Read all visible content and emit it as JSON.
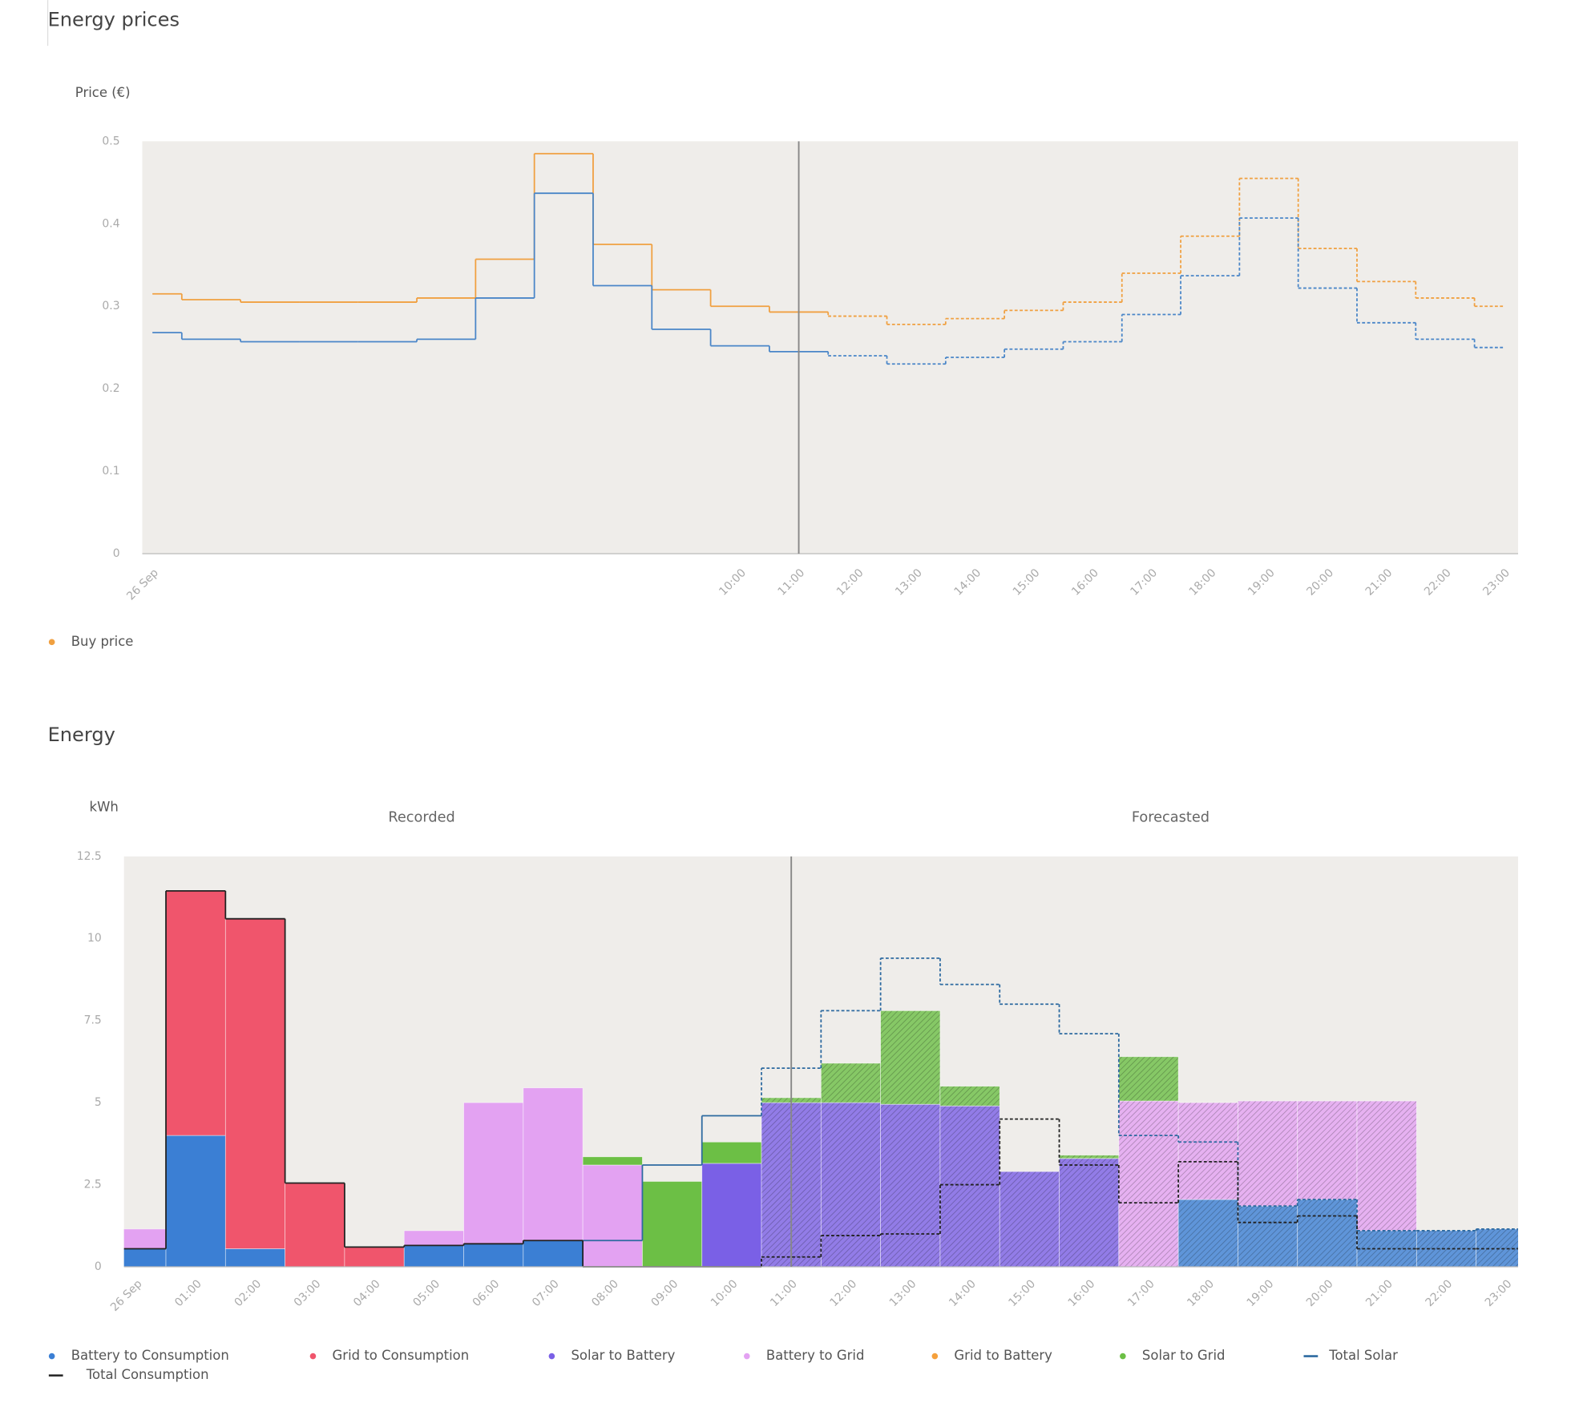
{
  "chart_data": [
    {
      "type": "line",
      "step": "mid",
      "title": "Energy prices",
      "y_label": "Price (€)",
      "categories": [
        "26 Sep",
        null,
        null,
        null,
        null,
        null,
        null,
        null,
        null,
        null,
        "10:00",
        "11:00",
        "12:00",
        "13:00",
        "14:00",
        "15:00",
        "16:00",
        "17:00",
        "18:00",
        "19:00",
        "20:00",
        "21:00",
        "22:00",
        "23:00"
      ],
      "divider": "11:00",
      "ylim": [
        0,
        0.5
      ],
      "yticks": [
        0,
        0.1,
        0.2,
        0.3,
        0.4,
        0.5
      ],
      "grid": false,
      "legend": "bottom-left",
      "series": [
        {
          "name": "Buy price",
          "color": "#f0a040",
          "values": [
            0.315,
            0.308,
            0.305,
            0.305,
            0.305,
            0.31,
            0.357,
            0.485,
            0.375,
            0.32,
            0.3,
            0.293,
            0.288,
            0.278,
            0.285,
            0.295,
            0.305,
            0.34,
            0.385,
            0.455,
            0.37,
            0.33,
            0.31,
            0.3
          ]
        },
        {
          "color": "#4a86c8",
          "values": [
            0.268,
            0.26,
            0.257,
            0.257,
            0.257,
            0.26,
            0.31,
            0.437,
            0.325,
            0.272,
            0.252,
            0.245,
            0.24,
            0.23,
            0.238,
            0.248,
            0.257,
            0.29,
            0.337,
            0.407,
            0.322,
            0.28,
            0.26,
            0.25
          ]
        }
      ]
    },
    {
      "type": "bar",
      "stacked": true,
      "step": "mid",
      "title": "Energy",
      "y_label": "kWh",
      "annotations": [
        "Recorded",
        "Forecasted"
      ],
      "categories": [
        "26 Sep",
        "01:00",
        "02:00",
        "03:00",
        "04:00",
        "05:00",
        "06:00",
        "07:00",
        "08:00",
        "09:00",
        "10:00",
        "11:00",
        "12:00",
        "13:00",
        "14:00",
        "15:00",
        "16:00",
        "17:00",
        "18:00",
        "19:00",
        "20:00",
        "21:00",
        "22:00",
        "23:00"
      ],
      "divider": "11:00",
      "ylim": [
        0,
        12.5
      ],
      "yticks": [
        0,
        2.5,
        5,
        7.5,
        10,
        12.5
      ],
      "grid": false,
      "legend": "bottom-left",
      "series": [
        {
          "name": "Battery to Consumption",
          "color": "#3b7fd4",
          "values": [
            0.55,
            4.0,
            0.55,
            0,
            0,
            0.65,
            0.7,
            0.8,
            0,
            0,
            0,
            0,
            0,
            0,
            0,
            0,
            0,
            0,
            2.05,
            1.85,
            2.05,
            1.1,
            1.1,
            1.15
          ]
        },
        {
          "name": "Grid to Consumption",
          "color": "#f0556c",
          "values": [
            0,
            7.45,
            10.05,
            2.55,
            0.6,
            0,
            0,
            0,
            0,
            0,
            0,
            0,
            0,
            0,
            0,
            0,
            0,
            0,
            0,
            0,
            0,
            0,
            0,
            0
          ]
        },
        {
          "name": "Solar to Battery",
          "color": "#7a60e6",
          "values": [
            0,
            0,
            0,
            0,
            0,
            0,
            0,
            0,
            0,
            0,
            3.15,
            5.0,
            5.0,
            4.95,
            4.9,
            2.9,
            3.3,
            0,
            0,
            0,
            0,
            0,
            0,
            0
          ]
        },
        {
          "name": "Battery to Grid",
          "color": "#e3a2f2",
          "values": [
            0.6,
            0,
            0,
            0,
            0,
            0.45,
            4.3,
            4.65,
            3.1,
            0,
            0,
            0,
            0,
            0,
            0,
            0,
            0,
            5.05,
            2.95,
            3.2,
            3.0,
            3.95,
            0,
            0
          ]
        },
        {
          "name": "Grid to Battery",
          "color": "#f5a03c",
          "values": [
            0,
            0,
            0,
            0,
            0,
            0,
            0,
            0,
            0,
            0,
            0,
            0,
            0,
            0,
            0,
            0,
            0,
            0,
            0,
            0,
            0,
            0,
            0,
            0
          ]
        },
        {
          "name": "Solar to Grid",
          "color": "#6cbf45",
          "values": [
            0,
            0,
            0,
            0,
            0,
            0,
            0,
            0,
            0.25,
            2.6,
            0.65,
            0.15,
            1.2,
            2.85,
            0.6,
            0,
            0.1,
            1.35,
            0,
            0,
            0,
            0,
            0,
            0
          ]
        },
        {
          "name": "Total Solar",
          "type": "line",
          "color": "#2d6aa0",
          "values": [
            null,
            null,
            null,
            null,
            null,
            null,
            null,
            null,
            0.8,
            3.1,
            4.6,
            6.05,
            7.8,
            9.4,
            8.6,
            8.0,
            7.1,
            4.0,
            3.8,
            1.85,
            2.05,
            1.1,
            1.1,
            1.15
          ]
        },
        {
          "name": "Total Consumption",
          "type": "line",
          "color": "#222222",
          "values": [
            0.55,
            11.45,
            10.6,
            2.55,
            0.6,
            0.65,
            0.7,
            0.8,
            0,
            0,
            0,
            0.3,
            0.95,
            1.0,
            2.5,
            4.5,
            3.1,
            1.95,
            3.2,
            1.35,
            1.55,
            0.55,
            0.55,
            0.55
          ]
        }
      ]
    }
  ]
}
